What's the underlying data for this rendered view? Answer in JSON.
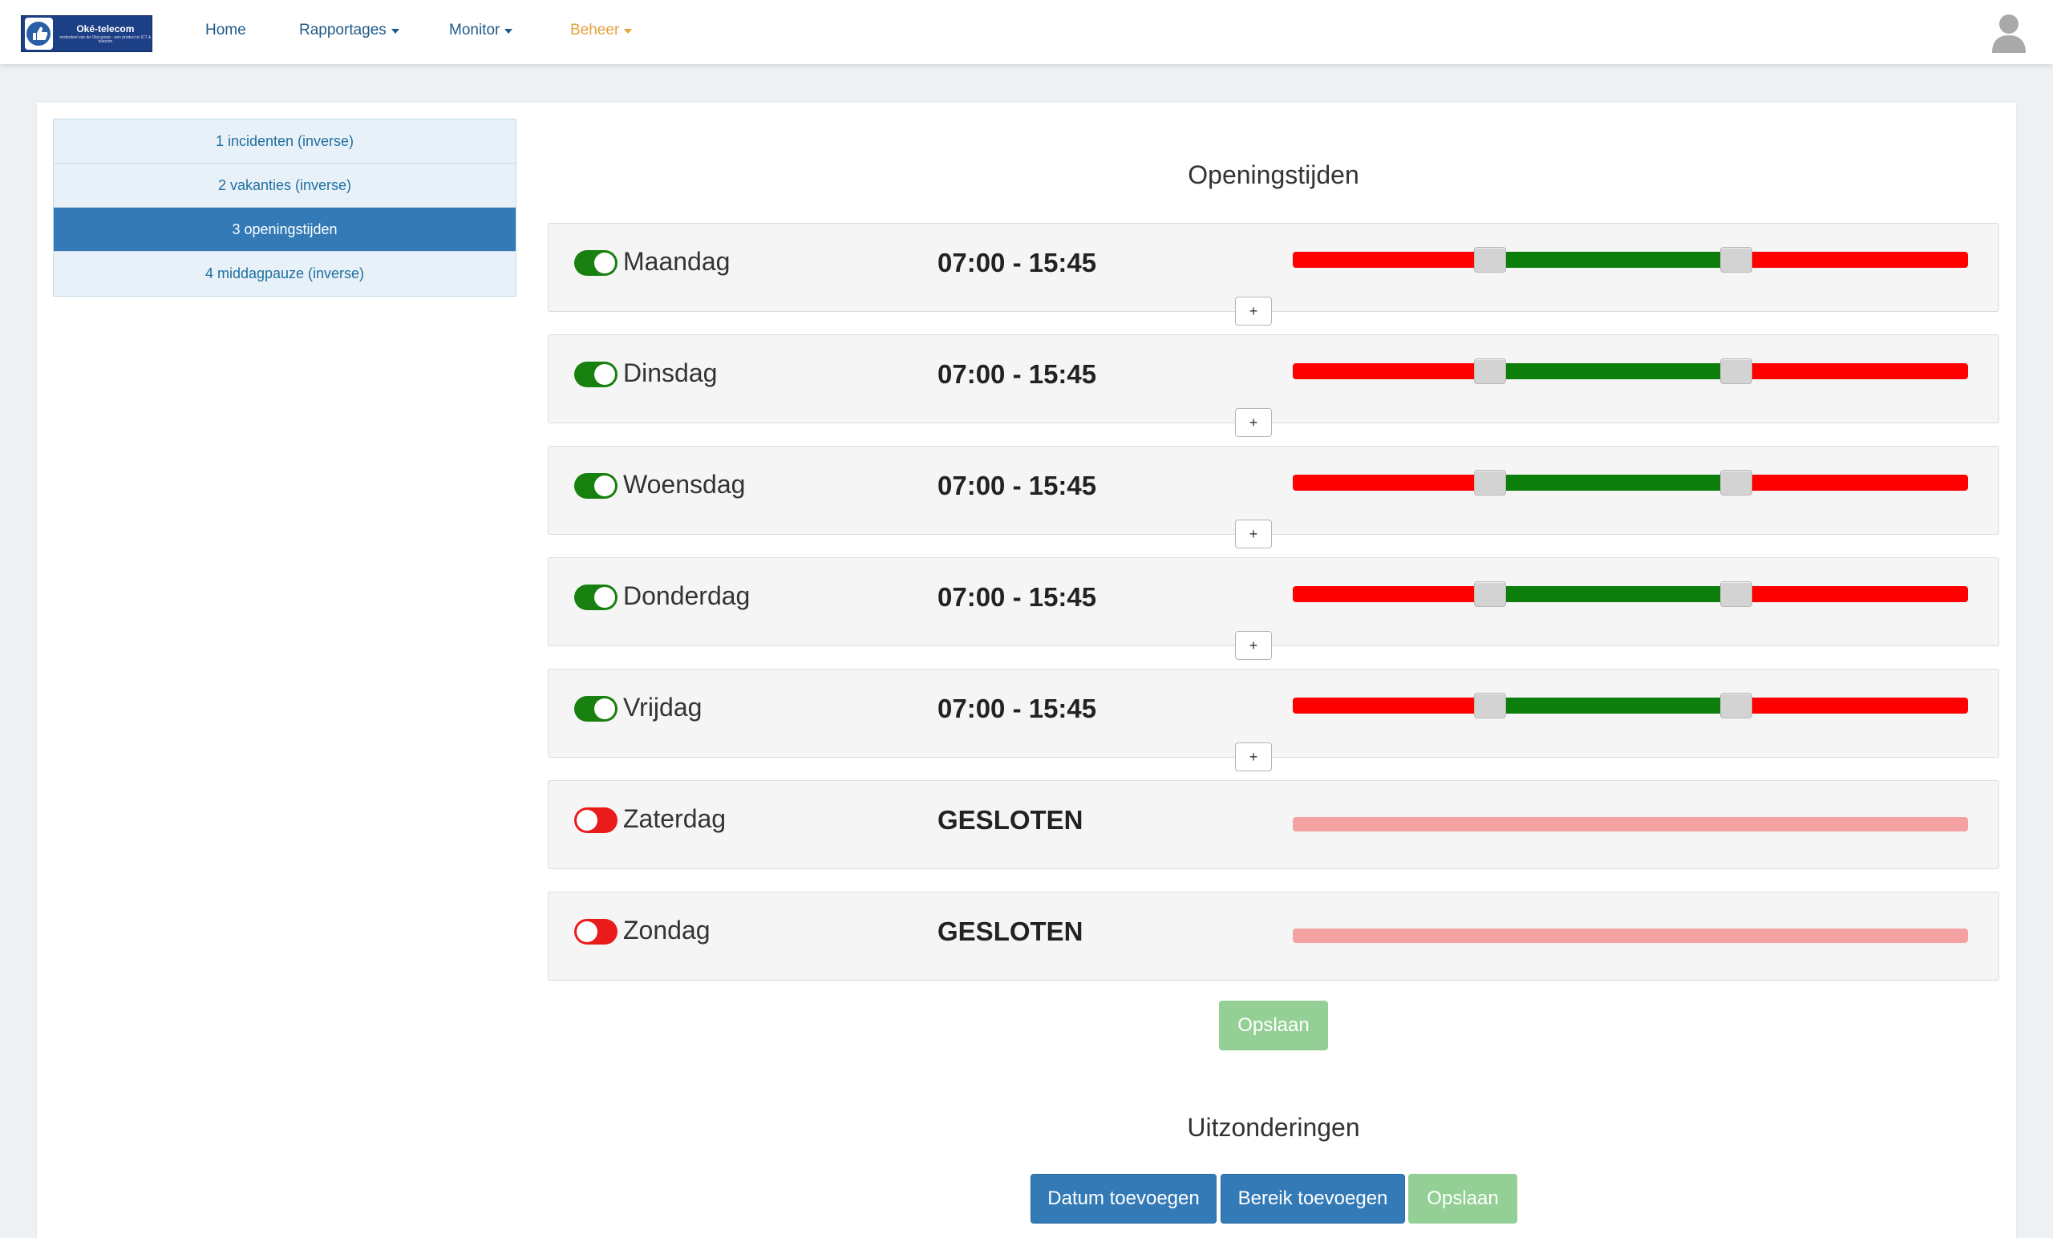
{
  "brand": {
    "title": "Oké-telecom",
    "subtitle": "onderdeel van de Oké-groep · een product in ICT & telecom"
  },
  "nav": {
    "home": "Home",
    "rapportages": "Rapportages",
    "monitor": "Monitor",
    "beheer": "Beheer"
  },
  "menu": {
    "items": [
      {
        "label": "1 incidenten (inverse)"
      },
      {
        "label": "2 vakanties (inverse)"
      },
      {
        "label": "3 openingstijden"
      },
      {
        "label": "4 middagpauze (inverse)"
      }
    ],
    "active_index": 2
  },
  "opening": {
    "title": "Openingstijden",
    "days": [
      {
        "name": "Maandag",
        "enabled": true,
        "hours": "07:00 - 15:45",
        "range": [
          7.0,
          15.75
        ]
      },
      {
        "name": "Dinsdag",
        "enabled": true,
        "hours": "07:00 - 15:45",
        "range": [
          7.0,
          15.75
        ]
      },
      {
        "name": "Woensdag",
        "enabled": true,
        "hours": "07:00 - 15:45",
        "range": [
          7.0,
          15.75
        ]
      },
      {
        "name": "Donderdag",
        "enabled": true,
        "hours": "07:00 - 15:45",
        "range": [
          7.0,
          15.75
        ]
      },
      {
        "name": "Vrijdag",
        "enabled": true,
        "hours": "07:00 - 15:45",
        "range": [
          7.0,
          15.75
        ]
      },
      {
        "name": "Zaterdag",
        "enabled": false,
        "hours": "GESLOTEN"
      },
      {
        "name": "Zondag",
        "enabled": false,
        "hours": "GESLOTEN"
      }
    ],
    "add_label": "+",
    "save_label": "Opslaan",
    "slider_max_hours": 24
  },
  "exceptions": {
    "title": "Uitzonderingen",
    "add_date_label": "Datum toevoegen",
    "add_range_label": "Bereik toevoegen",
    "save_label": "Opslaan"
  },
  "colors": {
    "primary": "#337ab7",
    "open": "#0c7e0c",
    "closed": "#ff0000",
    "closed_disabled": "#f4a1a1",
    "save_disabled": "#94d095",
    "nav_active": "#e6a23a"
  }
}
